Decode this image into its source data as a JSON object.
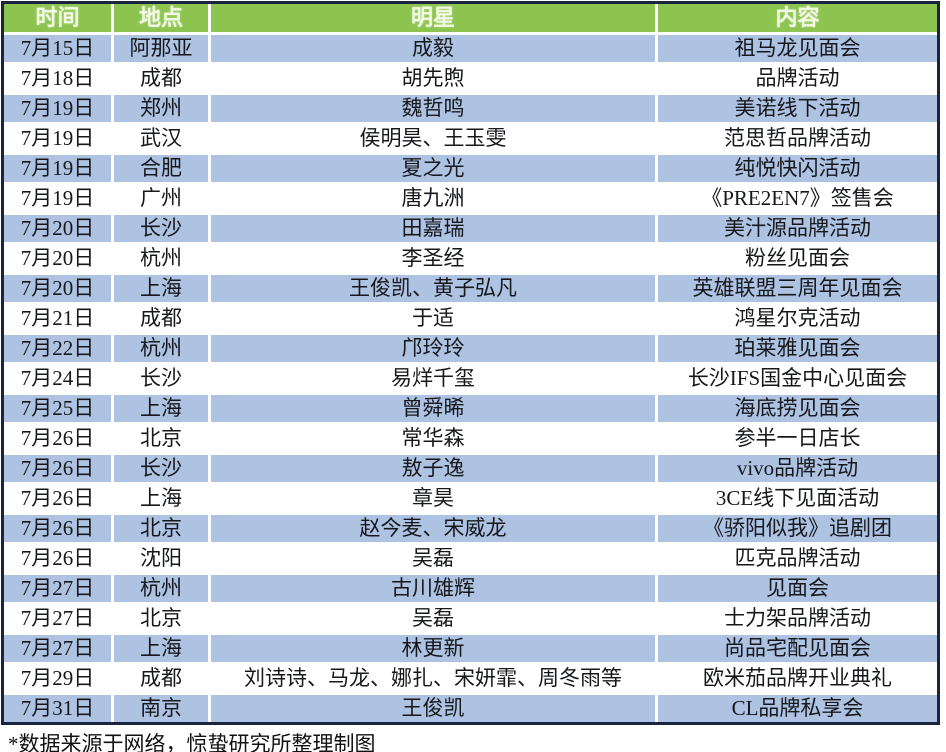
{
  "chart_data": {
    "type": "table",
    "columns": [
      "时间",
      "地点",
      "明星",
      "内容"
    ],
    "rows": [
      [
        "7月15日",
        "阿那亚",
        "成毅",
        "祖马龙见面会"
      ],
      [
        "7月18日",
        "成都",
        "胡先煦",
        "品牌活动"
      ],
      [
        "7月19日",
        "郑州",
        "魏哲鸣",
        "美诺线下活动"
      ],
      [
        "7月19日",
        "武汉",
        "侯明昊、王玉雯",
        "范思哲品牌活动"
      ],
      [
        "7月19日",
        "合肥",
        "夏之光",
        "纯悦快闪活动"
      ],
      [
        "7月19日",
        "广州",
        "唐九洲",
        "《PRE2EN7》签售会"
      ],
      [
        "7月20日",
        "长沙",
        "田嘉瑞",
        "美汁源品牌活动"
      ],
      [
        "7月20日",
        "杭州",
        "李圣经",
        "粉丝见面会"
      ],
      [
        "7月20日",
        "上海",
        "王俊凯、黄子弘凡",
        "英雄联盟三周年见面会"
      ],
      [
        "7月21日",
        "成都",
        "于适",
        "鸿星尔克活动"
      ],
      [
        "7月22日",
        "杭州",
        "邝玲玲",
        "珀莱雅见面会"
      ],
      [
        "7月24日",
        "长沙",
        "易烊千玺",
        "长沙IFS国金中心见面会"
      ],
      [
        "7月25日",
        "上海",
        "曾舜晞",
        "海底捞见面会"
      ],
      [
        "7月26日",
        "北京",
        "常华森",
        "参半一日店长"
      ],
      [
        "7月26日",
        "长沙",
        "敖子逸",
        "vivo品牌活动"
      ],
      [
        "7月26日",
        "上海",
        "章昊",
        "3CE线下见面活动"
      ],
      [
        "7月26日",
        "北京",
        "赵今麦、宋威龙",
        "《骄阳似我》追剧团"
      ],
      [
        "7月26日",
        "沈阳",
        "吴磊",
        "匹克品牌活动"
      ],
      [
        "7月27日",
        "杭州",
        "古川雄辉",
        "见面会"
      ],
      [
        "7月27日",
        "北京",
        "吴磊",
        "士力架品牌活动"
      ],
      [
        "7月27日",
        "上海",
        "林更新",
        "尚品宅配见面会"
      ],
      [
        "7月29日",
        "成都",
        "刘诗诗、马龙、娜扎、宋妍霏、周冬雨等",
        "欧米茄品牌开业典礼"
      ],
      [
        "7月31日",
        "南京",
        "王俊凯",
        "CL品牌私享会"
      ]
    ],
    "title": "",
    "legend": null,
    "grid": "dashed-white-separators"
  },
  "footnote": "*数据来源于网络，惊蛰研究所整理制图",
  "colors": {
    "header_bg": "#8dc450",
    "header_text": "#f2f9e2",
    "row_alt_bg": "#aec3e2",
    "row_bg": "#ffffff",
    "outer_border": "#1a2440",
    "separator": "#ffffff",
    "body_text": "#16181d"
  }
}
